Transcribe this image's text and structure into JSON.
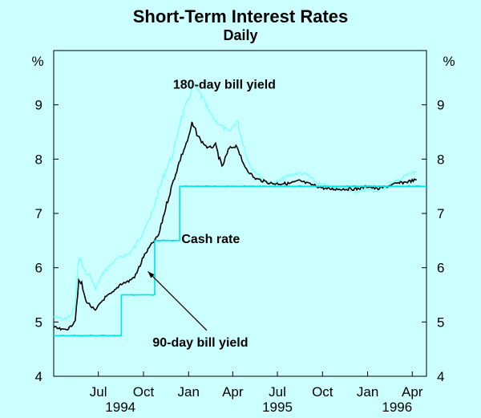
{
  "chart_data": {
    "type": "line",
    "title": "Short-Term Interest Rates",
    "subtitle": "Daily",
    "ylabel_left": "%",
    "ylabel_right": "%",
    "ylim": [
      4,
      10
    ],
    "y_ticks": [
      4,
      5,
      6,
      7,
      8,
      9
    ],
    "x_tick_labels": [
      "Jul",
      "Oct",
      "Jan",
      "Apr",
      "Jul",
      "Oct",
      "Jan",
      "Apr"
    ],
    "x_tick_dates": [
      "1994-07-01",
      "1994-10-01",
      "1995-01-01",
      "1995-04-01",
      "1995-07-01",
      "1995-10-01",
      "1996-01-01",
      "1996-04-01"
    ],
    "x_range": [
      "1994-04-01",
      "1996-04-30"
    ],
    "year_labels": [
      {
        "label": "1994",
        "date": "1994-08-15"
      },
      {
        "label": "1995",
        "date": "1995-07-01"
      },
      {
        "label": "1996",
        "date": "1996-03-01"
      }
    ],
    "grid": false,
    "series": [
      {
        "name": "180-day bill yield",
        "color": "#80ffff",
        "points": [
          [
            "1994-04-01",
            5.1
          ],
          [
            "1994-04-20",
            5.05
          ],
          [
            "1994-05-05",
            5.1
          ],
          [
            "1994-05-15",
            5.3
          ],
          [
            "1994-05-22",
            6.2
          ],
          [
            "1994-05-28",
            6.1
          ],
          [
            "1994-06-05",
            5.9
          ],
          [
            "1994-06-15",
            5.85
          ],
          [
            "1994-06-25",
            5.6
          ],
          [
            "1994-07-05",
            5.8
          ],
          [
            "1994-07-15",
            5.95
          ],
          [
            "1994-08-01",
            6.1
          ],
          [
            "1994-08-15",
            6.2
          ],
          [
            "1994-09-01",
            6.25
          ],
          [
            "1994-09-15",
            6.4
          ],
          [
            "1994-10-01",
            6.7
          ],
          [
            "1994-10-15",
            6.9
          ],
          [
            "1994-11-01",
            7.4
          ],
          [
            "1994-11-15",
            7.8
          ],
          [
            "1994-12-01",
            8.1
          ],
          [
            "1994-12-15",
            8.7
          ],
          [
            "1995-01-01",
            9.1
          ],
          [
            "1995-01-10",
            9.4
          ],
          [
            "1995-01-25",
            9.2
          ],
          [
            "1995-02-10",
            8.9
          ],
          [
            "1995-02-25",
            8.7
          ],
          [
            "1995-03-10",
            8.6
          ],
          [
            "1995-03-25",
            8.5
          ],
          [
            "1995-04-10",
            8.7
          ],
          [
            "1995-04-25",
            8.2
          ],
          [
            "1995-05-05",
            7.9
          ],
          [
            "1995-05-20",
            7.75
          ],
          [
            "1995-06-05",
            7.6
          ],
          [
            "1995-06-20",
            7.55
          ],
          [
            "1995-07-05",
            7.6
          ],
          [
            "1995-07-25",
            7.7
          ],
          [
            "1995-08-15",
            7.75
          ],
          [
            "1995-09-01",
            7.7
          ],
          [
            "1995-09-20",
            7.55
          ],
          [
            "1995-10-10",
            7.5
          ],
          [
            "1995-11-01",
            7.45
          ],
          [
            "1995-11-20",
            7.45
          ],
          [
            "1995-12-10",
            7.4
          ],
          [
            "1996-01-01",
            7.45
          ],
          [
            "1996-01-20",
            7.4
          ],
          [
            "1996-02-10",
            7.5
          ],
          [
            "1996-03-01",
            7.6
          ],
          [
            "1996-03-20",
            7.7
          ],
          [
            "1996-04-10",
            7.78
          ]
        ]
      },
      {
        "name": "90-day bill yield",
        "color": "#000000",
        "points": [
          [
            "1994-04-01",
            4.9
          ],
          [
            "1994-04-20",
            4.85
          ],
          [
            "1994-05-05",
            4.9
          ],
          [
            "1994-05-15",
            5.05
          ],
          [
            "1994-05-22",
            5.75
          ],
          [
            "1994-05-28",
            5.7
          ],
          [
            "1994-06-05",
            5.4
          ],
          [
            "1994-06-15",
            5.3
          ],
          [
            "1994-06-25",
            5.2
          ],
          [
            "1994-07-05",
            5.35
          ],
          [
            "1994-07-15",
            5.45
          ],
          [
            "1994-08-01",
            5.55
          ],
          [
            "1994-08-15",
            5.7
          ],
          [
            "1994-09-01",
            5.75
          ],
          [
            "1994-09-15",
            5.85
          ],
          [
            "1994-10-01",
            6.2
          ],
          [
            "1994-10-15",
            6.4
          ],
          [
            "1994-11-01",
            6.6
          ],
          [
            "1994-11-15",
            7.1
          ],
          [
            "1994-12-01",
            7.6
          ],
          [
            "1994-12-15",
            8.0
          ],
          [
            "1995-01-01",
            8.4
          ],
          [
            "1995-01-08",
            8.65
          ],
          [
            "1995-01-25",
            8.35
          ],
          [
            "1995-02-10",
            8.2
          ],
          [
            "1995-02-25",
            8.25
          ],
          [
            "1995-03-10",
            7.85
          ],
          [
            "1995-03-25",
            8.2
          ],
          [
            "1995-04-10",
            8.25
          ],
          [
            "1995-04-20",
            7.95
          ],
          [
            "1995-05-01",
            7.8
          ],
          [
            "1995-05-15",
            7.65
          ],
          [
            "1995-06-01",
            7.6
          ],
          [
            "1995-06-20",
            7.55
          ],
          [
            "1995-07-05",
            7.55
          ],
          [
            "1995-07-25",
            7.55
          ],
          [
            "1995-08-15",
            7.6
          ],
          [
            "1995-09-01",
            7.55
          ],
          [
            "1995-09-20",
            7.5
          ],
          [
            "1995-10-10",
            7.45
          ],
          [
            "1995-11-01",
            7.45
          ],
          [
            "1995-11-20",
            7.45
          ],
          [
            "1995-12-10",
            7.45
          ],
          [
            "1996-01-01",
            7.5
          ],
          [
            "1996-01-20",
            7.45
          ],
          [
            "1996-02-10",
            7.5
          ],
          [
            "1996-03-01",
            7.55
          ],
          [
            "1996-03-20",
            7.58
          ],
          [
            "1996-04-10",
            7.62
          ]
        ]
      },
      {
        "name": "Cash rate",
        "color": "#00e5e5",
        "step": true,
        "points": [
          [
            "1994-04-01",
            4.75
          ],
          [
            "1994-08-17",
            4.75
          ],
          [
            "1994-08-17",
            5.5
          ],
          [
            "1994-10-24",
            5.5
          ],
          [
            "1994-10-24",
            6.5
          ],
          [
            "1994-12-14",
            6.5
          ],
          [
            "1994-12-14",
            7.5
          ],
          [
            "1995-05-31",
            7.5
          ],
          [
            "1995-05-31",
            7.5
          ],
          [
            "1996-04-30",
            7.5
          ]
        ]
      }
    ],
    "annotations": [
      {
        "text": "180-day bill yield",
        "date": "1995-03-15",
        "value": 9.3
      },
      {
        "text": "Cash rate",
        "date": "1995-02-15",
        "value": 6.45
      },
      {
        "text": "90-day bill yield",
        "date": "1995-01-25",
        "value": 4.55,
        "arrow_to": {
          "date": "1994-10-10",
          "value": 5.93
        }
      }
    ]
  }
}
